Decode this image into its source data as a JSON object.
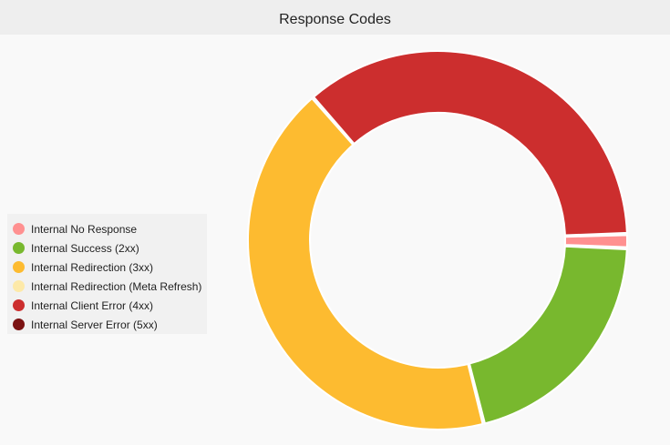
{
  "chart_data": {
    "type": "pie",
    "variant": "donut",
    "title": "Response Codes",
    "legend_position": "left",
    "series": [
      {
        "name": "Internal No Response",
        "value": 1.2,
        "color": "#ff9090"
      },
      {
        "name": "Internal Success (2xx)",
        "value": 20.4,
        "color": "#78b82e"
      },
      {
        "name": "Internal Redirection (3xx)",
        "value": 42.5,
        "color": "#fdbb30"
      },
      {
        "name": "Internal Redirection (Meta Refresh)",
        "value": 0,
        "color": "#fde9a8"
      },
      {
        "name": "Internal Client Error (4xx)",
        "value": 35.9,
        "color": "#cc2e2e"
      },
      {
        "name": "Internal Server Error (5xx)",
        "value": 0,
        "color": "#7b1212"
      }
    ]
  }
}
